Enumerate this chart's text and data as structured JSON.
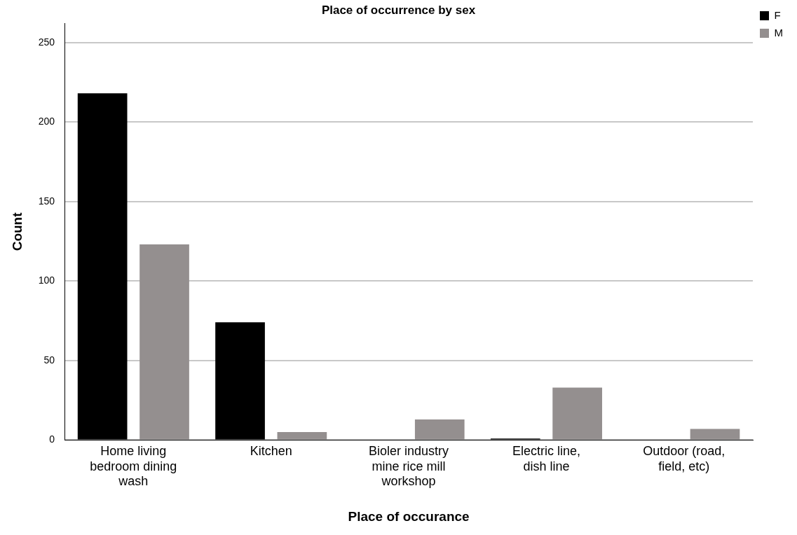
{
  "chart_data": {
    "type": "bar",
    "title": "Place of occurrence by sex",
    "xlabel": "Place of occurance",
    "ylabel": "Count",
    "categories": [
      "Home living bedroom dining wash",
      "Kitchen",
      "Bioler industry mine rice mill workshop",
      "Electric line, dish line",
      "Outdoor (road, field, etc)"
    ],
    "series": [
      {
        "name": "F",
        "color": "#000000",
        "values": [
          218,
          74,
          0,
          1,
          0
        ]
      },
      {
        "name": "M",
        "color": "#948f8f",
        "values": [
          123,
          5,
          13,
          33,
          7
        ]
      }
    ],
    "ylim": [
      0,
      262
    ],
    "yticks": [
      0,
      50,
      100,
      150,
      200,
      250
    ],
    "grid": "y",
    "legend": "top right"
  }
}
